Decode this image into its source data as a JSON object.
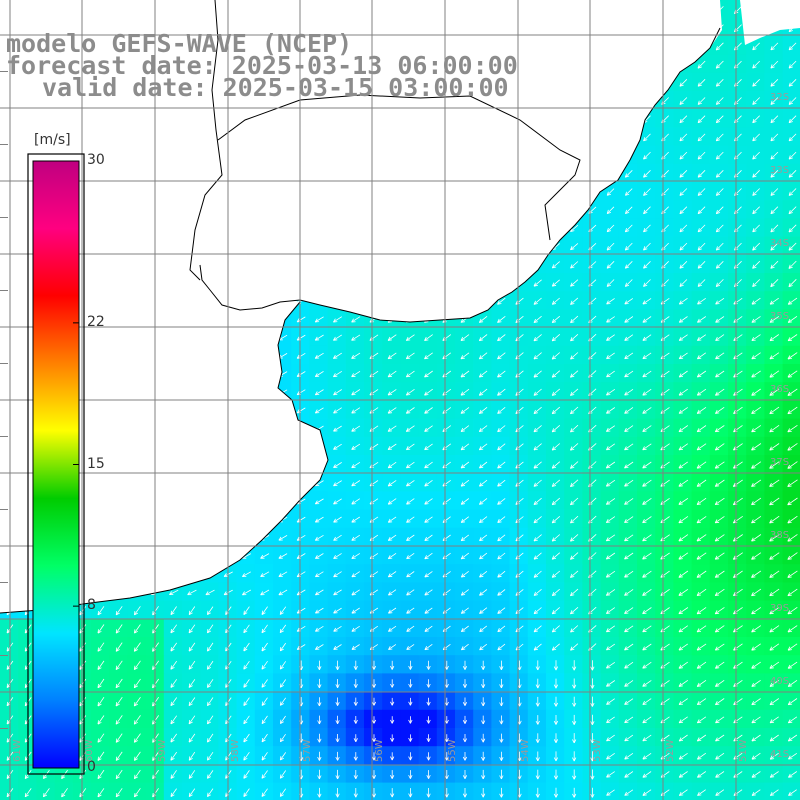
{
  "title": {
    "model": "modelo GEFS-WAVE (NCEP)",
    "forecast": "forecast date: 2025-03-13 06:00:00",
    "valid": "valid date: 2025-03-15 03:00:00"
  },
  "colorbar": {
    "unit": "[m/s]",
    "ticks": [
      "30",
      "22",
      "15",
      "8",
      "0"
    ],
    "tick_values": [
      30,
      22,
      15,
      8,
      0
    ],
    "min": 0,
    "max": 30,
    "colors": [
      "#0000ff",
      "#0080ff",
      "#00e5ff",
      "#00ff66",
      "#00cc00",
      "#ffff00",
      "#ff8000",
      "#ff0000",
      "#ff0080",
      "#c00080"
    ]
  },
  "map": {
    "lat_labels": [
      "32S",
      "33S",
      "34S",
      "35S",
      "36S",
      "37S",
      "38S",
      "39S",
      "40S",
      "41S"
    ],
    "lon_labels": [
      "61W",
      "60W",
      "59W",
      "58W",
      "57W",
      "56W",
      "55W",
      "54W",
      "53W",
      "52W",
      "51W"
    ],
    "land_color": "#ffffff",
    "coast_color": "#000000",
    "grid_color": "#808080",
    "arrow_color": "#ffffff"
  }
}
